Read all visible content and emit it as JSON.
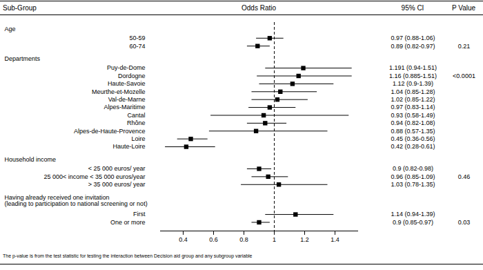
{
  "chart_data": {
    "type": "forest",
    "columns": [
      "Sub-Group",
      "Odds Ratio",
      "95% CI",
      "P Value"
    ],
    "groups": [
      {
        "name": "Age",
        "labels": [
          "50-59",
          "60-74"
        ],
        "values": [
          0.97,
          0.89
        ],
        "lower": [
          0.88,
          0.82
        ],
        "upper": [
          1.06,
          0.97
        ],
        "value_labels": [
          "0.97 (0.88-1.06)",
          "0.89 (0.82-0.97)"
        ],
        "p_value": 0.21
      },
      {
        "name": "Departments",
        "labels": [
          "Puy-de-Dome",
          "Dordogne",
          "Haute-Savoie",
          "Meurthe-et-Mozelle",
          "Val-de-Marne",
          "Alpes-Maritime",
          "Cantal",
          "Rhône",
          "Alpes-de-Haute-Provence",
          "Loire",
          "Haute-Loire"
        ],
        "values": [
          1.191,
          1.16,
          1.12,
          1.04,
          1.02,
          0.97,
          0.93,
          0.94,
          0.88,
          0.45,
          0.42
        ],
        "lower": [
          0.94,
          0.885,
          0.9,
          0.85,
          0.85,
          0.83,
          0.58,
          0.82,
          0.57,
          0.36,
          0.28
        ],
        "upper": [
          1.51,
          1.51,
          1.39,
          1.28,
          1.22,
          1.14,
          1.49,
          1.08,
          1.35,
          0.56,
          0.61
        ],
        "value_labels": [
          "1.191 (0.94-1.51)",
          "1.16 (0.885-1.51)",
          "1.12 (0.9-1.39)",
          "1.04 (0.85-1.28)",
          "1.02 (0.85-1.22)",
          "0.97 (0.83-1.14)",
          "0.93 (0.58-1.49)",
          "0.94 (0.82-1.08)",
          "0.88 (0.57-1.35)",
          "0.45 (0.36-0.56)",
          "0.42 (0.28-0.61)"
        ],
        "p_value": {
          "value": 0.0001,
          "label": "<0.0001"
        }
      },
      {
        "name": "Household income",
        "labels": [
          "< 25 000 euros/ year",
          "25 000< income < 35 000 euros/year",
          "> 35 000 euros/ year"
        ],
        "values": [
          0.9,
          0.96,
          1.03
        ],
        "lower": [
          0.82,
          0.85,
          0.78
        ],
        "upper": [
          0.98,
          1.09,
          1.35
        ],
        "value_labels": [
          "0.9 (0.82-0.98)",
          "0.96 (0.85-1.09)",
          "1.03 (0.78-1.35)"
        ],
        "p_value": 0.46
      },
      {
        "name": "Having already received one invitation\n(leading to participation to national screening or not)",
        "labels": [
          "First",
          "One or more"
        ],
        "values": [
          1.14,
          0.9
        ],
        "lower": [
          0.94,
          0.85
        ],
        "upper": [
          1.39,
          0.97
        ],
        "value_labels": [
          "1.14 (0.94-1.39)",
          "0.9 (0.85-0.97)"
        ],
        "p_value": 0.03
      }
    ],
    "xlim": [
      0.25,
      1.55
    ],
    "xticks": [
      0.4,
      0.6,
      0.8,
      1,
      1.2,
      1.4
    ],
    "reference_line": 1,
    "marker": "square",
    "color": "#000000",
    "note": "The p-value is from the test statistic for testing the interaction between Decision aid group and any subgroup variable"
  }
}
